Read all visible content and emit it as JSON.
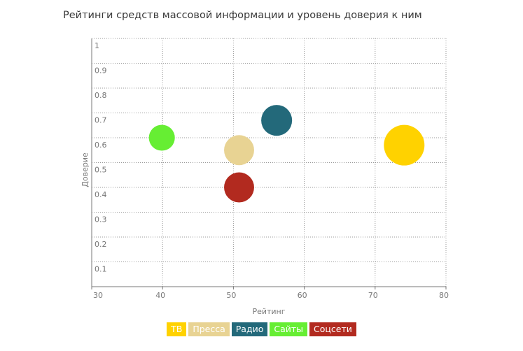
{
  "title": "Рейтинги средств массовой информации и уровень доверия к ним",
  "chart_data": {
    "type": "scatter",
    "xlabel": "Рейтинг",
    "ylabel": "Доверие",
    "xlim": [
      30,
      80
    ],
    "ylim": [
      0,
      1
    ],
    "x_ticks": [
      "30",
      "40",
      "50",
      "60",
      "70",
      "80"
    ],
    "y_ticks": [
      "0.1",
      "0.2",
      "0.3",
      "0.4",
      "0.5",
      "0.6",
      "0.7",
      "0.8",
      "0.9",
      "1"
    ],
    "grid": true,
    "legend_position": "bottom",
    "series": [
      {
        "name": "ТВ",
        "x": 74.1,
        "y": 0.57,
        "size": 1.0,
        "color": "#ffd200"
      },
      {
        "name": "Пресса",
        "x": 50.8,
        "y": 0.55,
        "size": 0.74,
        "color": "#e8d393"
      },
      {
        "name": "Радио",
        "x": 56.1,
        "y": 0.67,
        "size": 0.76,
        "color": "#23697a"
      },
      {
        "name": "Сайты",
        "x": 39.9,
        "y": 0.6,
        "size": 0.64,
        "color": "#66ee33"
      },
      {
        "name": "Соцсети",
        "x": 50.8,
        "y": 0.4,
        "size": 0.74,
        "color": "#b22a1f"
      }
    ]
  }
}
